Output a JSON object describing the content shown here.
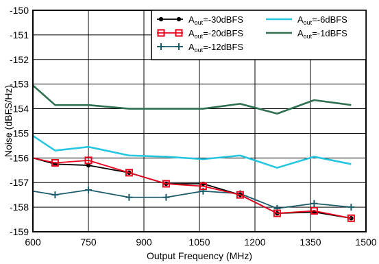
{
  "chart_data": {
    "type": "line",
    "title": "",
    "xlabel": "Output Frequency (MHz)",
    "ylabel": "Noise (dBFS/Hz)",
    "xlim": [
      600,
      1500
    ],
    "ylim": [
      -159,
      -150
    ],
    "xticks": [
      600,
      750,
      900,
      1050,
      1200,
      1350,
      1500
    ],
    "yticks": [
      -150,
      -151,
      -152,
      -153,
      -154,
      -155,
      -156,
      -157,
      -158,
      -159
    ],
    "grid": true,
    "legend_position": "top-right",
    "x": [
      600,
      660,
      750,
      860,
      960,
      1060,
      1160,
      1260,
      1360,
      1460
    ],
    "series": [
      {
        "name": "Aout=-30dBFS",
        "name_main": "A",
        "name_sub": "out",
        "name_rest": "=-30dBFS",
        "color": "#000000",
        "marker": "dot",
        "values": [
          -156.0,
          -156.25,
          -156.3,
          -156.6,
          -157.05,
          -157.05,
          -157.5,
          -158.25,
          -158.2,
          -158.45
        ]
      },
      {
        "name": "Aout=-20dBFS",
        "name_main": "A",
        "name_sub": "out",
        "name_rest": "=-20dBFS",
        "color": "#e8001c",
        "marker": "square",
        "values": [
          -156.0,
          -156.2,
          -156.1,
          -156.6,
          -157.05,
          -157.15,
          -157.5,
          -158.25,
          -158.15,
          -158.45
        ]
      },
      {
        "name": "Aout=-12dBFS",
        "name_main": "A",
        "name_sub": "out",
        "name_rest": "=-12dBFS",
        "color": "#1d5c6b",
        "marker": "plus",
        "values": [
          -157.35,
          -157.5,
          -157.3,
          -157.6,
          -157.6,
          -157.35,
          -157.45,
          -158.05,
          -157.85,
          -158.0
        ]
      },
      {
        "name": "Aout=-6dBFS",
        "name_main": "A",
        "name_sub": "out",
        "name_rest": "=-6dBFS",
        "color": "#27c6e0",
        "marker": "none",
        "values": [
          -155.1,
          -155.7,
          -155.55,
          -155.9,
          -155.95,
          -156.05,
          -155.9,
          -156.4,
          -155.95,
          -156.25
        ]
      },
      {
        "name": "Aout=-1dBFS",
        "name_main": "A",
        "name_sub": "out",
        "name_rest": "=-1dBFS",
        "color": "#2e7050",
        "marker": "none",
        "values": [
          -153.05,
          -153.85,
          -153.85,
          -154.0,
          -154.0,
          -154.0,
          -153.8,
          -154.2,
          -153.65,
          -153.85
        ]
      }
    ]
  }
}
